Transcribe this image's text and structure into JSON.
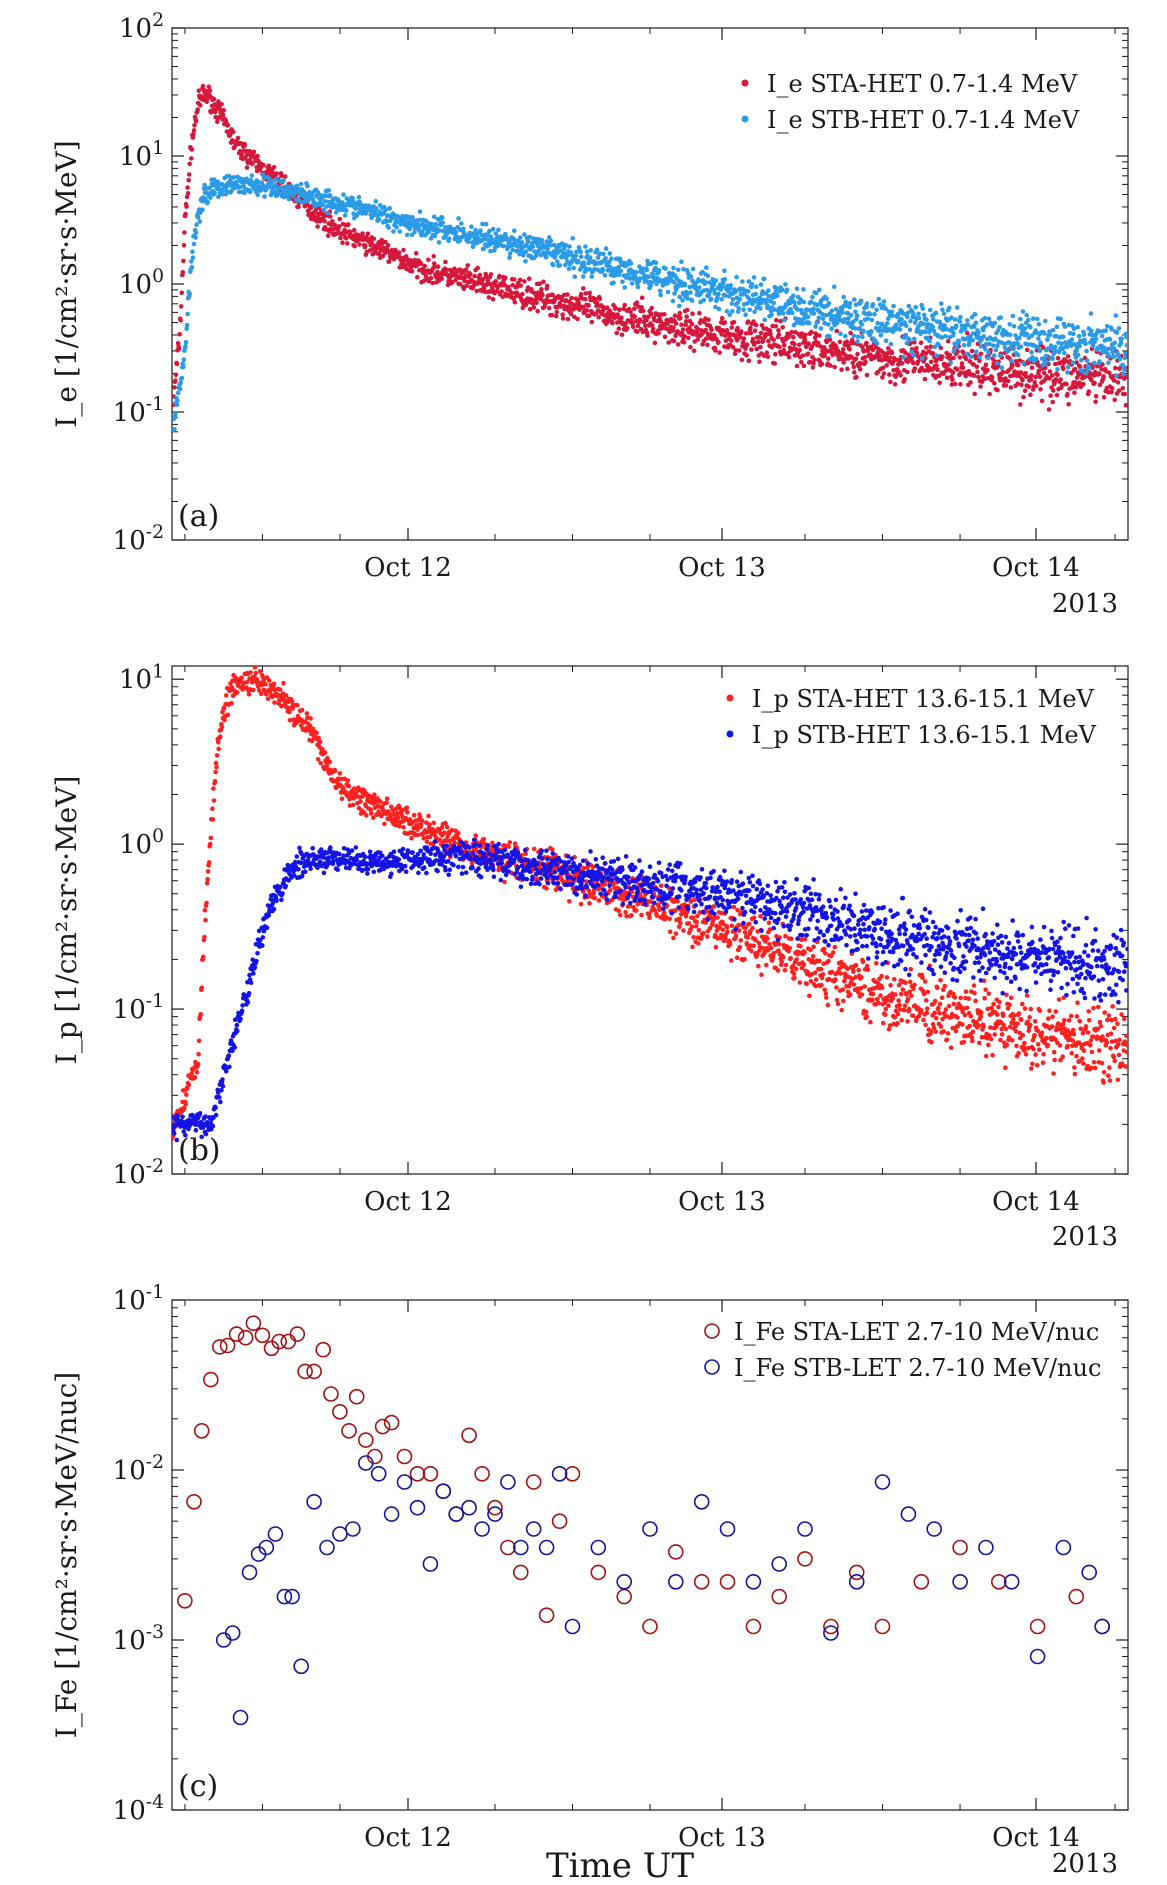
{
  "figure": {
    "year_label": "2013",
    "xlabel": "Time UT"
  },
  "colors": {
    "axis": "#1a1a1a",
    "sta_e": "#d6183d",
    "stb_e": "#2b9be8",
    "sta_p": "#ff2020",
    "stb_p": "#1414e6",
    "sta_fe": "#a01414",
    "stb_fe": "#14149c"
  },
  "chart_data": [
    {
      "type": "scatter",
      "panel_label": "(a)",
      "ylabel": "I_e  [1/cm²·sr·s·MeV]",
      "yscale": "log",
      "ylim": [
        0.01,
        100
      ],
      "yticks": [
        "10^-2",
        "10^-1",
        "10^0",
        "10^1",
        "10^2"
      ],
      "xlim": [
        "2013-10-11T05:00",
        "2013-10-14T07:00"
      ],
      "xticks": [
        "Oct 12",
        "Oct 13",
        "Oct 14"
      ],
      "legend_position": "top-right",
      "series": [
        {
          "name": "I_e STA-HET 0.7-1.4 MeV",
          "marker": "dot",
          "color": "#d6183d",
          "x_hours_after_oct11_00": [
            5.1,
            5.6,
            6.0,
            6.5,
            7.0,
            7.5,
            8.0,
            9.0,
            10.0,
            12.0,
            14.0,
            16.0,
            18.0,
            20.0,
            22.0,
            24.0,
            28.0,
            32.0,
            36.0,
            40.0,
            44.0,
            48.0,
            52.0,
            56.0,
            60.0,
            66.0,
            72.0,
            78.0
          ],
          "y": [
            0.12,
            0.4,
            3.0,
            12.0,
            25.0,
            31.0,
            28.0,
            19.0,
            12.0,
            8.0,
            5.5,
            3.6,
            2.6,
            2.1,
            1.7,
            1.35,
            1.05,
            0.85,
            0.68,
            0.55,
            0.46,
            0.4,
            0.34,
            0.3,
            0.26,
            0.23,
            0.2,
            0.18
          ]
        },
        {
          "name": "I_e STB-HET 0.7-1.4 MeV",
          "marker": "dot",
          "color": "#2b9be8",
          "x_hours_after_oct11_00": [
            5.1,
            6.0,
            6.5,
            7.0,
            7.5,
            8.0,
            9.0,
            10.0,
            12.0,
            14.0,
            16.0,
            18.0,
            20.0,
            22.0,
            24.0,
            28.0,
            32.0,
            36.0,
            40.0,
            44.0,
            48.0,
            52.0,
            56.0,
            60.0,
            66.0,
            72.0,
            78.0
          ],
          "y": [
            0.075,
            0.3,
            1.5,
            3.5,
            5.0,
            5.5,
            5.8,
            6.0,
            5.8,
            5.4,
            4.8,
            4.3,
            3.8,
            3.3,
            2.9,
            2.4,
            2.0,
            1.6,
            1.3,
            1.05,
            0.85,
            0.7,
            0.58,
            0.5,
            0.42,
            0.36,
            0.32
          ]
        }
      ]
    },
    {
      "type": "scatter",
      "panel_label": "(b)",
      "ylabel": "I_p  [1/cm²·sr·s·MeV]",
      "yscale": "log",
      "ylim": [
        0.01,
        12
      ],
      "yticks": [
        "10^-2",
        "10^-1",
        "10^0",
        "10^1"
      ],
      "xlim": [
        "2013-10-11T05:00",
        "2013-10-14T07:00"
      ],
      "xticks": [
        "Oct 12",
        "Oct 13",
        "Oct 14"
      ],
      "legend_position": "top-right",
      "series": [
        {
          "name": "I_p STA-HET 13.6-15.1 MeV",
          "marker": "dot",
          "color": "#ff2020",
          "x_hours_after_oct11_00": [
            5.0,
            7.0,
            7.5,
            8.0,
            8.5,
            9.0,
            9.5,
            10.0,
            11.0,
            12.0,
            13.0,
            14.0,
            15.0,
            16.0,
            17.0,
            18.0,
            20.0,
            22.0,
            24.0,
            26.0,
            28.0,
            30.0,
            33.0,
            36.0,
            40.0,
            44.0,
            48.0,
            52.0,
            56.0,
            60.0,
            66.0,
            72.0,
            78.0
          ],
          "y": [
            0.018,
            0.05,
            0.3,
            1.2,
            3.5,
            6.5,
            8.5,
            9.5,
            10.0,
            9.8,
            8.5,
            7.0,
            5.5,
            4.5,
            3.0,
            2.2,
            1.8,
            1.5,
            1.3,
            1.1,
            0.95,
            0.85,
            0.75,
            0.62,
            0.5,
            0.4,
            0.3,
            0.22,
            0.16,
            0.12,
            0.09,
            0.07,
            0.06
          ]
        },
        {
          "name": "I_p STB-HET 13.6-15.1 MeV",
          "marker": "dot",
          "color": "#1414e6",
          "x_hours_after_oct11_00": [
            5.0,
            8.0,
            9.0,
            10.0,
            11.0,
            12.0,
            13.0,
            14.0,
            15.0,
            16.0,
            17.0,
            18.0,
            20.0,
            22.0,
            24.0,
            27.0,
            30.0,
            33.0,
            36.0,
            40.0,
            44.0,
            48.0,
            52.0,
            56.0,
            60.0,
            66.0,
            72.0,
            78.0
          ],
          "y": [
            0.02,
            0.02,
            0.04,
            0.08,
            0.15,
            0.3,
            0.5,
            0.65,
            0.75,
            0.8,
            0.82,
            0.8,
            0.78,
            0.8,
            0.82,
            0.85,
            0.8,
            0.72,
            0.65,
            0.6,
            0.55,
            0.5,
            0.42,
            0.36,
            0.3,
            0.24,
            0.2,
            0.18
          ]
        }
      ]
    },
    {
      "type": "scatter",
      "panel_label": "(c)",
      "ylabel": "I_Fe  [1/cm²·sr·s·MeV/nuc]",
      "yscale": "log",
      "ylim": [
        0.0001,
        0.1
      ],
      "yticks": [
        "10^-4",
        "10^-3",
        "10^-2",
        "10^-1"
      ],
      "xlim": [
        "2013-10-11T05:00",
        "2013-10-14T07:00"
      ],
      "xticks": [
        "Oct 12",
        "Oct 13",
        "Oct 14"
      ],
      "legend_position": "top-right",
      "series": [
        {
          "name": "I_Fe STA-LET 2.7-10 MeV/nuc",
          "marker": "open-circle",
          "color": "#a01414",
          "x_hours_after_oct11_00": [
            6.0,
            6.7,
            7.3,
            8.0,
            8.7,
            9.3,
            10.0,
            10.7,
            11.3,
            12.0,
            12.7,
            13.3,
            14.0,
            14.7,
            15.3,
            16.0,
            16.7,
            17.3,
            18.0,
            18.7,
            19.3,
            20.0,
            20.7,
            21.3,
            22.0,
            23.0,
            24.0,
            25.0,
            26.0,
            27.0,
            28.0,
            29.0,
            30.0,
            31.0,
            32.0,
            33.0,
            34.0,
            35.0,
            36.0,
            38.0,
            40.0,
            42.0,
            44.0,
            46.0,
            48.0,
            50.0,
            52.0,
            54.0,
            56.0,
            58.0,
            60.0,
            63.0,
            66.0,
            69.0,
            72.0,
            75.0,
            77.0
          ],
          "y": [
            0.0017,
            0.0065,
            0.017,
            0.034,
            0.053,
            0.054,
            0.063,
            0.06,
            0.073,
            0.062,
            0.052,
            0.057,
            0.057,
            0.063,
            0.038,
            0.038,
            0.051,
            0.028,
            0.022,
            0.017,
            0.027,
            0.015,
            0.012,
            0.018,
            0.019,
            0.012,
            0.0095,
            0.0095,
            0.0075,
            0.0055,
            0.016,
            0.0095,
            0.006,
            0.0035,
            0.0025,
            0.0085,
            0.0014,
            0.005,
            0.0095,
            0.0025,
            0.0018,
            0.0012,
            0.0033,
            0.0022,
            0.0022,
            0.0012,
            0.0018,
            0.003,
            0.0012,
            0.0025,
            0.0012,
            0.0022,
            0.0035,
            0.0022,
            0.0012,
            0.0018,
            0.0012
          ]
        },
        {
          "name": "I_Fe STB-LET 2.7-10 MeV/nuc",
          "marker": "open-circle",
          "color": "#14149c",
          "x_hours_after_oct11_00": [
            9.0,
            9.7,
            10.3,
            11.0,
            11.7,
            12.3,
            13.0,
            13.7,
            14.3,
            15.0,
            16.0,
            17.0,
            18.0,
            19.0,
            20.0,
            21.0,
            22.0,
            23.0,
            24.0,
            25.0,
            26.0,
            27.0,
            28.0,
            29.0,
            30.0,
            31.0,
            32.0,
            33.0,
            34.0,
            35.0,
            36.0,
            38.0,
            40.0,
            42.0,
            44.0,
            46.0,
            48.0,
            50.0,
            52.0,
            54.0,
            56.0,
            58.0,
            60.0,
            62.0,
            64.0,
            66.0,
            68.0,
            70.0,
            72.0,
            74.0,
            76.0,
            77.0
          ],
          "y": [
            0.001,
            0.0011,
            0.00035,
            0.0025,
            0.0032,
            0.0035,
            0.0042,
            0.0018,
            0.0018,
            0.0007,
            0.0065,
            0.0035,
            0.0042,
            0.0045,
            0.011,
            0.0095,
            0.0055,
            0.0085,
            0.006,
            0.0028,
            0.0075,
            0.0055,
            0.006,
            0.0045,
            0.0055,
            0.0085,
            0.0035,
            0.0045,
            0.0035,
            0.0095,
            0.0012,
            0.0035,
            0.0022,
            0.0045,
            0.0022,
            0.0065,
            0.0045,
            0.0022,
            0.0028,
            0.0045,
            0.0011,
            0.0022,
            0.0085,
            0.0055,
            0.0045,
            0.0022,
            0.0035,
            0.0022,
            0.0008,
            0.0035,
            0.0025,
            0.0012
          ]
        }
      ]
    }
  ]
}
